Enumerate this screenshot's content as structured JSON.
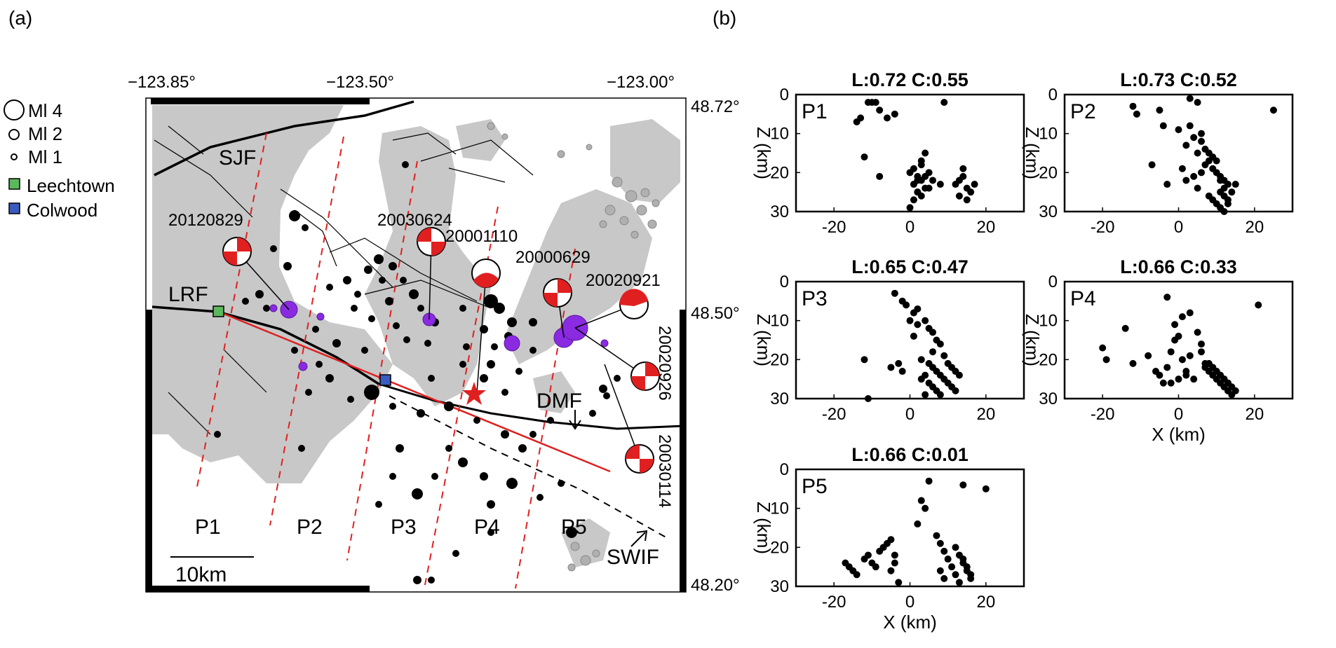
{
  "panels": {
    "a_label": "(a)",
    "b_label": "(b)"
  },
  "map": {
    "lon_ticks": [
      "−123.85°",
      "−123.50°",
      "−123.00°"
    ],
    "lat_ticks": [
      "48.72°",
      "48.50°",
      "48.20°"
    ],
    "legend": {
      "ml4": "Ml 4",
      "ml2": "Ml 2",
      "ml1": "Ml 1",
      "leechtown": "Leechtown",
      "colwood": "Colwood"
    },
    "faults": {
      "sjf": "SJF",
      "lrf": "LRF",
      "dmf": "DMF",
      "swif": "SWIF"
    },
    "events": [
      "20120829",
      "20030624",
      "20001110",
      "20000629",
      "20020921",
      "20020926",
      "20030114"
    ],
    "profiles": [
      "P1",
      "P2",
      "P3",
      "P4",
      "P5"
    ],
    "scale_bar": "10km",
    "colors": {
      "land": "#c8c8c8",
      "quake": "#000000",
      "tremor": "#8a2be2",
      "profile_line": "#e02020",
      "leechtown": "#5cb85c",
      "colwood": "#3a5bbf",
      "star": "#e02020"
    }
  },
  "chart_data": [
    {
      "type": "scatter",
      "name": "P1",
      "title": "L:0.72 C:0.55",
      "xlabel": "",
      "ylabel": "Z (km)",
      "xlim": [
        -30,
        30
      ],
      "ylim": [
        30,
        0
      ],
      "xticks": [
        "-20",
        "0",
        "20"
      ],
      "yticks": [
        "0",
        "10",
        "20",
        "30"
      ],
      "x": [
        -14,
        -13,
        -11,
        -10,
        -9,
        -8,
        -6,
        -4,
        9,
        -12,
        -8,
        0,
        2,
        3,
        1,
        4,
        5,
        2,
        3,
        1,
        0,
        6,
        3,
        4,
        8,
        13,
        14,
        15,
        16,
        12,
        17,
        14,
        13,
        15,
        3,
        2,
        4,
        5,
        1,
        2
      ],
      "y": [
        7,
        6,
        2,
        2,
        2,
        4,
        6,
        5,
        2,
        16,
        21,
        20,
        21,
        22,
        23,
        24,
        20,
        25,
        26,
        27,
        29,
        22,
        18,
        15,
        23,
        22,
        21,
        24,
        25,
        23,
        23,
        19,
        26,
        27,
        17,
        22,
        21,
        24,
        19,
        25
      ]
    },
    {
      "type": "scatter",
      "name": "P2",
      "title": "L:0.73 C:0.52",
      "xlabel": "",
      "ylabel": "Z (km)",
      "xlim": [
        -30,
        30
      ],
      "ylim": [
        30,
        0
      ],
      "xticks": [
        "-20",
        "0",
        "20"
      ],
      "yticks": [
        "0",
        "10",
        "20",
        "30"
      ],
      "x": [
        -12,
        -11,
        -5,
        -4,
        0,
        3,
        5,
        25,
        -7,
        -3,
        1,
        2,
        4,
        6,
        5,
        7,
        8,
        9,
        10,
        11,
        12,
        13,
        14,
        8,
        9,
        10,
        11,
        12,
        13,
        6,
        7,
        8,
        9,
        10,
        11,
        12,
        13,
        2,
        4,
        5,
        15,
        3,
        6,
        11,
        12
      ],
      "y": [
        3,
        5,
        4,
        8,
        9,
        1,
        2,
        4,
        18,
        23,
        19,
        22,
        21,
        20,
        24,
        18,
        17,
        19,
        20,
        21,
        22,
        23,
        25,
        26,
        27,
        28,
        29,
        26,
        27,
        12,
        14,
        15,
        16,
        17,
        22,
        24,
        28,
        13,
        11,
        15,
        23,
        8,
        10,
        25,
        30
      ]
    },
    {
      "type": "scatter",
      "name": "P3",
      "title": "L:0.65 C:0.47",
      "xlabel": "",
      "ylabel": "Z (km)",
      "xlim": [
        -30,
        30
      ],
      "ylim": [
        30,
        0
      ],
      "xticks": [
        "-20",
        "0",
        "20"
      ],
      "yticks": [
        "0",
        "10",
        "20",
        "30"
      ],
      "x": [
        -4,
        -2,
        -1,
        1,
        2,
        4,
        5,
        6,
        7,
        8,
        9,
        10,
        11,
        12,
        13,
        3,
        5,
        6,
        7,
        8,
        9,
        10,
        11,
        12,
        3,
        4,
        5,
        6,
        7,
        8,
        -12,
        -11,
        -5,
        -3,
        -2,
        0,
        1,
        2,
        4,
        6
      ],
      "y": [
        3,
        5,
        6,
        8,
        11,
        10,
        12,
        13,
        15,
        16,
        19,
        21,
        22,
        23,
        24,
        20,
        21,
        22,
        23,
        24,
        25,
        26,
        27,
        28,
        25,
        24,
        26,
        27,
        28,
        29,
        20,
        30,
        22,
        21,
        23,
        10,
        14,
        7,
        29,
        18
      ]
    },
    {
      "type": "scatter",
      "name": "P4",
      "title": "L:0.66 C:0.33",
      "xlabel": "X (km)",
      "ylabel": "Z (km)",
      "xlim": [
        -30,
        30
      ],
      "ylim": [
        30,
        0
      ],
      "xticks": [
        "-20",
        "0",
        "20"
      ],
      "yticks": [
        "0",
        "10",
        "20",
        "30"
      ],
      "x": [
        -20,
        -19,
        -14,
        -12,
        -8,
        -6,
        -5,
        -4,
        -3,
        -2,
        -1,
        0,
        1,
        2,
        3,
        4,
        5,
        6,
        7,
        8,
        9,
        10,
        11,
        12,
        13,
        14,
        8,
        9,
        10,
        11,
        12,
        13,
        14,
        15,
        -3,
        -1,
        1,
        21,
        -2,
        0,
        2,
        3,
        6,
        7,
        9,
        10,
        11,
        12,
        13
      ],
      "y": [
        17,
        20,
        12,
        21,
        19,
        23,
        24,
        26,
        22,
        18,
        15,
        14,
        20,
        24,
        8,
        25,
        13,
        16,
        22,
        23,
        24,
        25,
        26,
        27,
        28,
        29,
        21,
        22,
        23,
        24,
        25,
        26,
        27,
        28,
        4,
        11,
        9,
        6,
        26,
        25,
        23,
        19,
        18,
        21,
        22,
        23,
        24,
        25,
        26
      ]
    },
    {
      "type": "scatter",
      "name": "P5",
      "title": "L:0.66 C:0.01",
      "xlabel": "X (km)",
      "ylabel": "Z (km)",
      "xlim": [
        -30,
        30
      ],
      "ylim": [
        30,
        0
      ],
      "xticks": [
        "-20",
        "0",
        "20"
      ],
      "yticks": [
        "0",
        "10",
        "20",
        "30"
      ],
      "x": [
        -17,
        -16,
        -15,
        -14,
        -12,
        -11,
        -10,
        -9,
        -8,
        -7,
        -6,
        -5,
        -4,
        -3,
        3,
        4,
        5,
        7,
        8,
        9,
        10,
        11,
        12,
        13,
        14,
        15,
        16,
        13,
        14,
        15,
        16,
        14,
        20,
        -5,
        -4,
        2,
        9,
        8,
        12
      ],
      "y": [
        24,
        25,
        26,
        27,
        23,
        22,
        24,
        25,
        21,
        20,
        19,
        18,
        22,
        29,
        8,
        10,
        3,
        17,
        19,
        21,
        23,
        25,
        27,
        22,
        24,
        26,
        28,
        29,
        23,
        25,
        27,
        4,
        5,
        26,
        24,
        14,
        28,
        26,
        20
      ]
    }
  ]
}
